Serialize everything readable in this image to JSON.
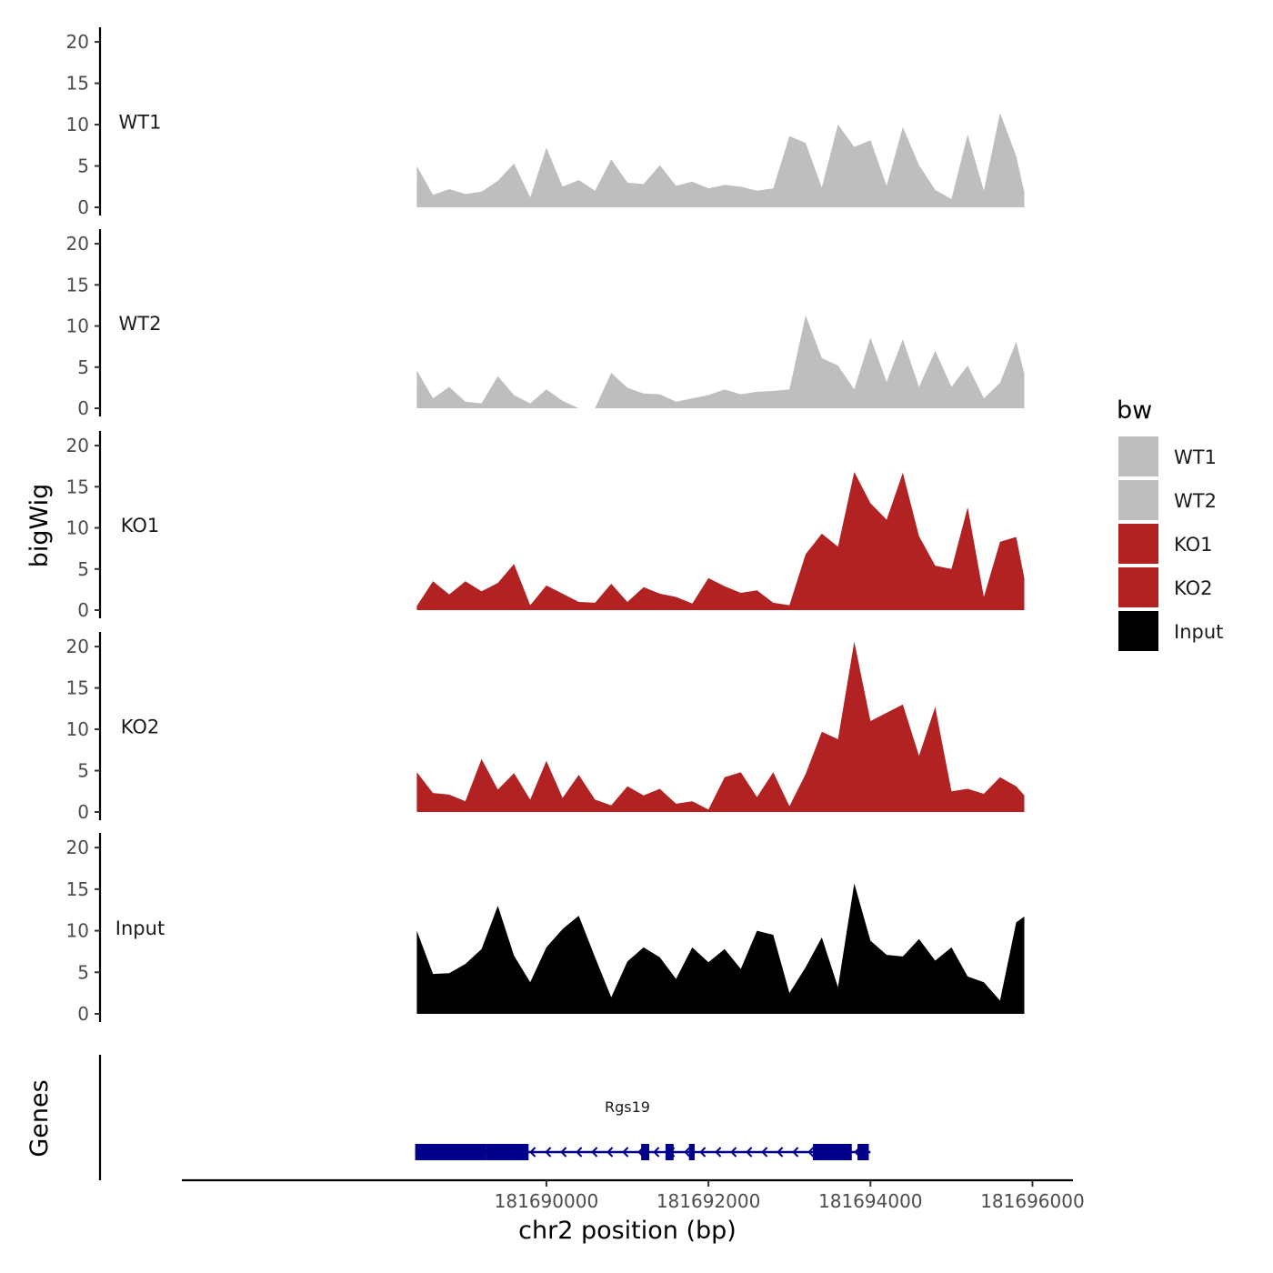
{
  "chart_data": {
    "type": "area",
    "title": "",
    "ylabel": "bigWig",
    "genes_label": "Genes",
    "xlabel": "chr2 position (bp)",
    "xlim": [
      181685500,
      181696500
    ],
    "x_ticks": [
      181690000,
      181692000,
      181694000,
      181696000
    ],
    "x_tick_labels": [
      "181690000",
      "181692000",
      "181694000",
      "181696000"
    ],
    "ylim": [
      0,
      21
    ],
    "y_ticks": [
      0,
      5,
      10,
      15,
      20
    ],
    "y_tick_labels": [
      "0",
      "5",
      "10",
      "15",
      "20"
    ],
    "legend": {
      "title": "bw",
      "position": "right",
      "entries": [
        {
          "label": "WT1",
          "color": "#bebebe"
        },
        {
          "label": "WT2",
          "color": "#bebebe"
        },
        {
          "label": "KO1",
          "color": "#b22222"
        },
        {
          "label": "KO2",
          "color": "#b22222"
        },
        {
          "label": "Input",
          "color": "#000000"
        }
      ]
    },
    "x": [
      181688400,
      181688600,
      181688800,
      181689000,
      181689200,
      181689400,
      181689600,
      181689800,
      181690000,
      181690200,
      181690400,
      181690600,
      181690800,
      181691000,
      181691200,
      181691400,
      181691600,
      181691800,
      181692000,
      181692200,
      181692400,
      181692600,
      181692800,
      181693000,
      181693200,
      181693400,
      181693600,
      181693800,
      181694000,
      181694200,
      181694400,
      181694600,
      181694800,
      181695000,
      181695200,
      181695400,
      181695600,
      181695800,
      181695900
    ],
    "series": [
      {
        "name": "WT1",
        "color": "#bebebe",
        "values": [
          5.0,
          1.5,
          2.2,
          1.6,
          1.9,
          3.2,
          5.3,
          1.2,
          7.2,
          2.5,
          3.3,
          2.0,
          5.8,
          3.0,
          2.8,
          5.1,
          2.6,
          3.1,
          2.3,
          2.7,
          2.5,
          2.0,
          2.3,
          8.6,
          7.8,
          2.4,
          10.0,
          7.3,
          8.1,
          2.6,
          9.7,
          5.1,
          2.1,
          1.0,
          8.8,
          2.0,
          11.4,
          6.2,
          1.8
        ]
      },
      {
        "name": "WT2",
        "color": "#bebebe",
        "values": [
          4.6,
          1.2,
          2.6,
          0.8,
          0.6,
          3.9,
          1.6,
          0.6,
          2.3,
          0.9,
          0.0,
          0.0,
          4.3,
          2.5,
          1.8,
          1.7,
          0.8,
          1.2,
          1.6,
          2.3,
          1.7,
          2.0,
          2.1,
          2.3,
          11.3,
          6.1,
          5.2,
          2.3,
          8.6,
          3.2,
          8.4,
          2.6,
          7.0,
          2.6,
          5.2,
          1.2,
          3.1,
          8.1,
          4.2
        ]
      },
      {
        "name": "KO1",
        "color": "#b22222",
        "values": [
          0.5,
          3.5,
          1.9,
          3.5,
          2.3,
          3.3,
          5.6,
          0.6,
          3.0,
          2.0,
          1.0,
          0.9,
          3.2,
          1.0,
          2.8,
          2.0,
          1.6,
          0.8,
          3.9,
          2.9,
          2.1,
          2.4,
          0.9,
          0.6,
          6.8,
          9.3,
          7.7,
          16.8,
          13.0,
          11.0,
          16.7,
          9.0,
          5.4,
          5.0,
          12.5,
          1.6,
          8.3,
          8.9,
          3.9
        ]
      },
      {
        "name": "KO2",
        "color": "#b22222",
        "values": [
          4.8,
          2.3,
          2.1,
          1.3,
          6.4,
          2.7,
          4.7,
          1.5,
          6.2,
          1.7,
          4.5,
          1.5,
          0.8,
          3.1,
          2.0,
          2.8,
          1.0,
          1.3,
          0.3,
          4.2,
          4.8,
          1.8,
          4.8,
          0.7,
          4.6,
          9.7,
          8.8,
          20.6,
          11.0,
          12.0,
          13.0,
          6.8,
          12.7,
          2.5,
          2.8,
          2.2,
          4.2,
          3.1,
          2.0
        ]
      },
      {
        "name": "Input",
        "color": "#000000",
        "values": [
          10.0,
          4.8,
          4.9,
          6.0,
          7.8,
          13.0,
          7.0,
          3.8,
          8.0,
          10.2,
          11.8,
          6.8,
          2.0,
          6.3,
          8.0,
          6.8,
          4.2,
          8.0,
          6.2,
          7.8,
          5.4,
          10.0,
          9.5,
          2.5,
          5.6,
          9.2,
          3.2,
          15.7,
          8.8,
          7.1,
          6.9,
          9.0,
          6.4,
          8.0,
          4.5,
          3.8,
          1.6,
          11.0,
          11.7
        ]
      }
    ],
    "genes": [
      {
        "name": "Rgs19",
        "strand": "-",
        "start": 181688380,
        "end": 181694000,
        "color": "#00008b",
        "exons": [
          [
            181688380,
            181689250
          ],
          [
            181689250,
            181689780
          ],
          [
            181691170,
            181691270
          ],
          [
            181691470,
            181691570
          ],
          [
            181691760,
            181691830
          ],
          [
            181693290,
            181693770
          ],
          [
            181693840,
            181693980
          ]
        ]
      }
    ]
  }
}
